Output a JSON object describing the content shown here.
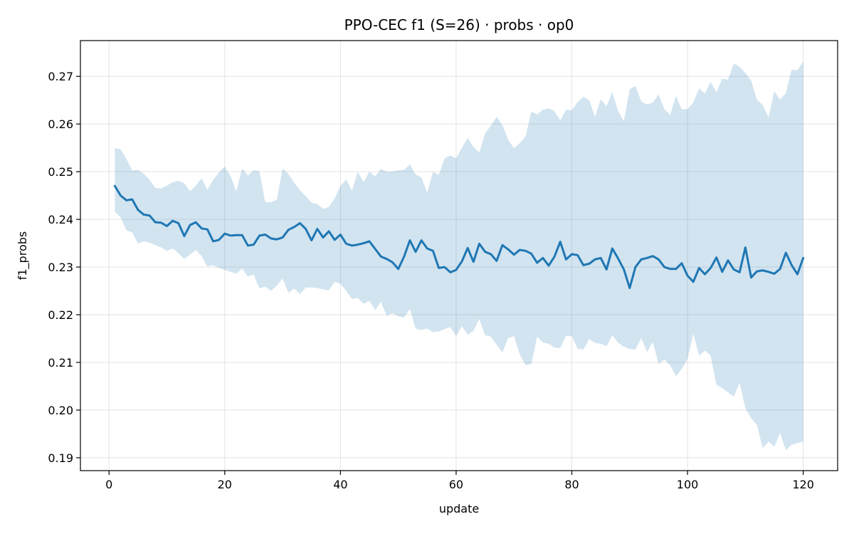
{
  "chart_data": {
    "type": "line",
    "title": "PPO-CEC f1 (S=26) · probs · op0",
    "xlabel": "update",
    "ylabel": "f1_probs",
    "xlim": [
      -4.95,
      125.95
    ],
    "ylim": [
      0.1873,
      0.2775
    ],
    "xticks": [
      0,
      20,
      40,
      60,
      80,
      100,
      120
    ],
    "yticks": [
      0.19,
      0.2,
      0.21,
      0.22,
      0.23,
      0.24,
      0.25,
      0.26,
      0.27
    ],
    "grid": true,
    "colors": {
      "line": "#1f77b4",
      "band": "#1f77b4"
    },
    "series": [
      {
        "x": [
          1,
          2,
          3,
          4,
          5,
          6,
          7,
          8,
          9,
          10,
          11,
          12,
          13,
          14,
          15,
          16,
          17,
          18,
          19,
          20,
          21,
          22,
          23,
          24,
          25,
          26,
          27,
          28,
          29,
          30,
          31,
          32,
          33,
          34,
          35,
          36,
          37,
          38,
          39,
          40,
          41,
          42,
          43,
          44,
          45,
          46,
          47,
          48,
          49,
          50,
          51,
          52,
          53,
          54,
          55,
          56,
          57,
          58,
          59,
          60,
          61,
          62,
          63,
          64,
          65,
          66,
          67,
          68,
          69,
          70,
          71,
          72,
          73,
          74,
          75,
          76,
          77,
          78,
          79,
          80,
          81,
          82,
          83,
          84,
          85,
          86,
          87,
          88,
          89,
          90,
          91,
          92,
          93,
          94,
          95,
          96,
          97,
          98,
          99,
          100,
          101,
          102,
          103,
          104,
          105,
          106,
          107,
          108,
          109,
          110,
          111,
          112,
          113,
          114,
          115,
          116,
          117,
          118,
          119,
          120
        ],
        "mean": [
          0.247,
          0.245,
          0.244,
          0.2442,
          0.242,
          0.241,
          0.2408,
          0.2394,
          0.2393,
          0.2386,
          0.2397,
          0.2392,
          0.2365,
          0.2388,
          0.2394,
          0.2381,
          0.2379,
          0.2354,
          0.2357,
          0.237,
          0.2366,
          0.2367,
          0.2367,
          0.2345,
          0.2347,
          0.2366,
          0.2368,
          0.236,
          0.2358,
          0.2362,
          0.2378,
          0.2384,
          0.2392,
          0.238,
          0.2356,
          0.238,
          0.2362,
          0.2375,
          0.2357,
          0.2368,
          0.2349,
          0.2345,
          0.2347,
          0.235,
          0.2354,
          0.2338,
          0.2322,
          0.2317,
          0.231,
          0.2296,
          0.2322,
          0.2356,
          0.2332,
          0.2356,
          0.2339,
          0.2334,
          0.2298,
          0.23,
          0.2289,
          0.2294,
          0.2312,
          0.234,
          0.2311,
          0.2349,
          0.2332,
          0.2327,
          0.2313,
          0.2346,
          0.2337,
          0.2326,
          0.2336,
          0.2334,
          0.2328,
          0.2309,
          0.2319,
          0.2303,
          0.2322,
          0.2353,
          0.2316,
          0.2327,
          0.2325,
          0.2304,
          0.2307,
          0.2316,
          0.2319,
          0.2295,
          0.2339,
          0.2318,
          0.2295,
          0.2256,
          0.23,
          0.2316,
          0.2319,
          0.2323,
          0.2316,
          0.23,
          0.2296,
          0.2296,
          0.2308,
          0.2282,
          0.2269,
          0.2298,
          0.2285,
          0.2298,
          0.232,
          0.229,
          0.2314,
          0.2295,
          0.2289,
          0.2341,
          0.2278,
          0.2291,
          0.2293,
          0.229,
          0.2286,
          0.2296,
          0.233,
          0.2304,
          0.2285,
          0.2319
        ],
        "upper": [
          0.2549,
          0.2547,
          0.2527,
          0.2502,
          0.2504,
          0.2496,
          0.2483,
          0.2466,
          0.2465,
          0.2471,
          0.2478,
          0.2481,
          0.2476,
          0.2459,
          0.2471,
          0.2486,
          0.2462,
          0.2483,
          0.2499,
          0.2511,
          0.2491,
          0.2459,
          0.2507,
          0.2492,
          0.2503,
          0.2501,
          0.2436,
          0.2436,
          0.2441,
          0.2507,
          0.2495,
          0.2477,
          0.2461,
          0.2449,
          0.2435,
          0.2432,
          0.2422,
          0.2426,
          0.2444,
          0.247,
          0.2484,
          0.246,
          0.25,
          0.2478,
          0.25,
          0.249,
          0.2506,
          0.25,
          0.25,
          0.2503,
          0.2504,
          0.2515,
          0.2494,
          0.2488,
          0.2456,
          0.25,
          0.2493,
          0.2528,
          0.2534,
          0.2528,
          0.255,
          0.2571,
          0.2552,
          0.254,
          0.258,
          0.2597,
          0.2615,
          0.2598,
          0.2567,
          0.2549,
          0.256,
          0.2574,
          0.2626,
          0.262,
          0.263,
          0.2633,
          0.2627,
          0.2608,
          0.263,
          0.2629,
          0.2646,
          0.2657,
          0.265,
          0.2615,
          0.2652,
          0.2637,
          0.2667,
          0.2627,
          0.2606,
          0.2673,
          0.268,
          0.2647,
          0.2641,
          0.2645,
          0.2662,
          0.2631,
          0.2619,
          0.2659,
          0.2631,
          0.2631,
          0.2645,
          0.2675,
          0.2664,
          0.2688,
          0.2667,
          0.2695,
          0.2693,
          0.2727,
          0.272,
          0.2707,
          0.2691,
          0.2651,
          0.264,
          0.2614,
          0.2669,
          0.2651,
          0.2665,
          0.2714,
          0.2713,
          0.2731
        ],
        "lower": [
          0.2416,
          0.2404,
          0.2377,
          0.2373,
          0.2349,
          0.2354,
          0.2351,
          0.2346,
          0.2341,
          0.2334,
          0.2339,
          0.2329,
          0.2317,
          0.2326,
          0.2336,
          0.2323,
          0.2301,
          0.2304,
          0.2298,
          0.2294,
          0.229,
          0.2286,
          0.2297,
          0.228,
          0.2284,
          0.2255,
          0.2259,
          0.225,
          0.2261,
          0.2276,
          0.2246,
          0.2255,
          0.2243,
          0.2257,
          0.2257,
          0.2256,
          0.2253,
          0.2251,
          0.2269,
          0.2265,
          0.225,
          0.2233,
          0.2235,
          0.2223,
          0.2229,
          0.221,
          0.2227,
          0.2198,
          0.2203,
          0.2197,
          0.2194,
          0.2212,
          0.2171,
          0.2168,
          0.2171,
          0.2163,
          0.2165,
          0.217,
          0.2174,
          0.2155,
          0.2176,
          0.2158,
          0.2166,
          0.2191,
          0.2157,
          0.2154,
          0.2137,
          0.2121,
          0.2151,
          0.2155,
          0.2117,
          0.2094,
          0.2097,
          0.2154,
          0.2142,
          0.2139,
          0.2131,
          0.213,
          0.2156,
          0.2155,
          0.2129,
          0.2127,
          0.2149,
          0.2141,
          0.2139,
          0.2134,
          0.2157,
          0.2141,
          0.2133,
          0.2128,
          0.2127,
          0.2151,
          0.2122,
          0.2143,
          0.2097,
          0.2106,
          0.2094,
          0.2071,
          0.2086,
          0.2107,
          0.2161,
          0.2114,
          0.2125,
          0.2114,
          0.2053,
          0.2046,
          0.2037,
          0.2028,
          0.2057,
          0.2004,
          0.1983,
          0.1969,
          0.192,
          0.1934,
          0.1923,
          0.1952,
          0.1916,
          0.1927,
          0.1931,
          0.1934
        ]
      }
    ]
  }
}
